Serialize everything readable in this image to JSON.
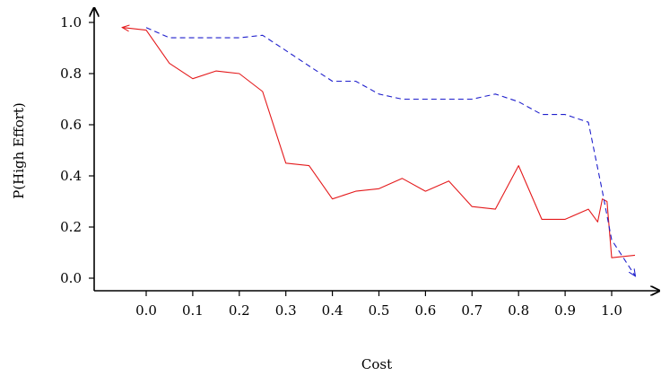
{
  "chart_data": {
    "type": "line",
    "title": "",
    "xlabel": "Cost",
    "ylabel": "P(High Effort)",
    "xlim": [
      -0.1,
      1.1
    ],
    "ylim": [
      -0.05,
      1.05
    ],
    "x_ticks": [
      0.0,
      0.1,
      0.2,
      0.3,
      0.4,
      0.5,
      0.6,
      0.7,
      0.8,
      0.9,
      1.0
    ],
    "x_tick_labels": [
      "0.0",
      "0.1",
      "0.2",
      "0.3",
      "0.4",
      "0.5",
      "0.6",
      "0.7",
      "0.8",
      "0.9",
      "1.0"
    ],
    "y_ticks": [
      0.0,
      0.2,
      0.4,
      0.6,
      0.8,
      1.0
    ],
    "y_tick_labels": [
      "0.0",
      "0.2",
      "0.4",
      "0.6",
      "0.8",
      "1.0"
    ],
    "grid": false,
    "legend": "none",
    "series": [
      {
        "color": "#e41a1c",
        "style": "solid",
        "arrow_at_start": true,
        "x": [
          -0.05,
          0.0,
          0.05,
          0.1,
          0.15,
          0.2,
          0.25,
          0.3,
          0.35,
          0.4,
          0.45,
          0.5,
          0.55,
          0.6,
          0.65,
          0.7,
          0.75,
          0.8,
          0.85,
          0.9,
          0.95,
          0.97,
          0.98,
          0.99,
          1.0,
          1.05
        ],
        "y": [
          0.98,
          0.97,
          0.84,
          0.78,
          0.81,
          0.8,
          0.73,
          0.45,
          0.44,
          0.31,
          0.34,
          0.35,
          0.39,
          0.34,
          0.38,
          0.28,
          0.27,
          0.44,
          0.23,
          0.23,
          0.27,
          0.22,
          0.31,
          0.3,
          0.08,
          0.09
        ]
      },
      {
        "color": "#1f1fcc",
        "style": "dashed",
        "arrow_at_end": true,
        "x": [
          0.0,
          0.05,
          0.1,
          0.15,
          0.2,
          0.25,
          0.3,
          0.35,
          0.4,
          0.45,
          0.5,
          0.55,
          0.6,
          0.65,
          0.7,
          0.75,
          0.8,
          0.85,
          0.9,
          0.95,
          0.98,
          1.0,
          1.05
        ],
        "y": [
          0.98,
          0.94,
          0.94,
          0.94,
          0.94,
          0.95,
          0.89,
          0.83,
          0.77,
          0.77,
          0.72,
          0.7,
          0.7,
          0.7,
          0.7,
          0.72,
          0.69,
          0.64,
          0.64,
          0.61,
          0.34,
          0.15,
          0.01
        ]
      }
    ]
  }
}
